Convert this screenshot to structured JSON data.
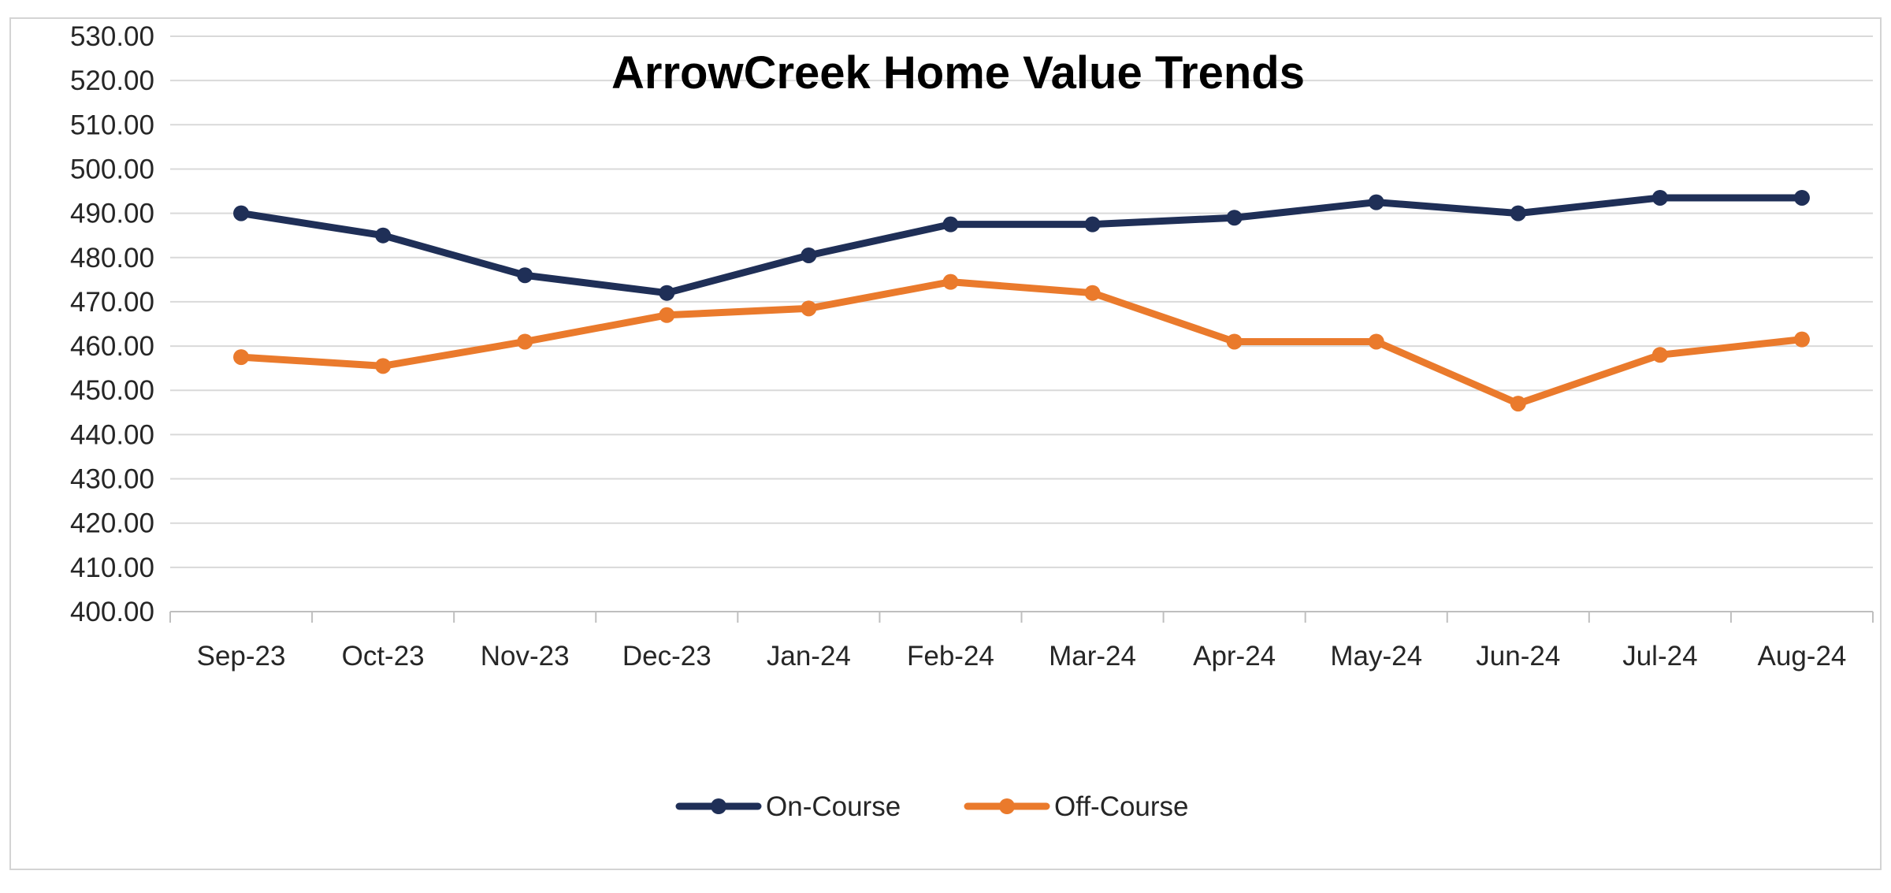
{
  "chart_data": {
    "type": "line",
    "title": "ArrowCreek Home Value Trends",
    "xlabel": "",
    "ylabel": "",
    "categories": [
      "Sep-23",
      "Oct-23",
      "Nov-23",
      "Dec-23",
      "Jan-24",
      "Feb-24",
      "Mar-24",
      "Apr-24",
      "May-24",
      "Jun-24",
      "Jul-24",
      "Aug-24"
    ],
    "ylim": [
      400,
      530
    ],
    "ytick_step": 10,
    "ytick_decimals": 2,
    "grid": "horizontal",
    "legend_position": "bottom",
    "series": [
      {
        "name": "On-Course",
        "color": "#1f2f57",
        "values": [
          490.0,
          485.0,
          476.0,
          472.0,
          480.5,
          487.5,
          487.5,
          489.0,
          492.5,
          490.0,
          493.5,
          493.5
        ]
      },
      {
        "name": "Off-Course",
        "color": "#ea7a2c",
        "values": [
          457.5,
          455.5,
          461.0,
          467.0,
          468.5,
          474.5,
          472.0,
          461.0,
          461.0,
          447.0,
          458.0,
          461.5
        ]
      }
    ]
  }
}
